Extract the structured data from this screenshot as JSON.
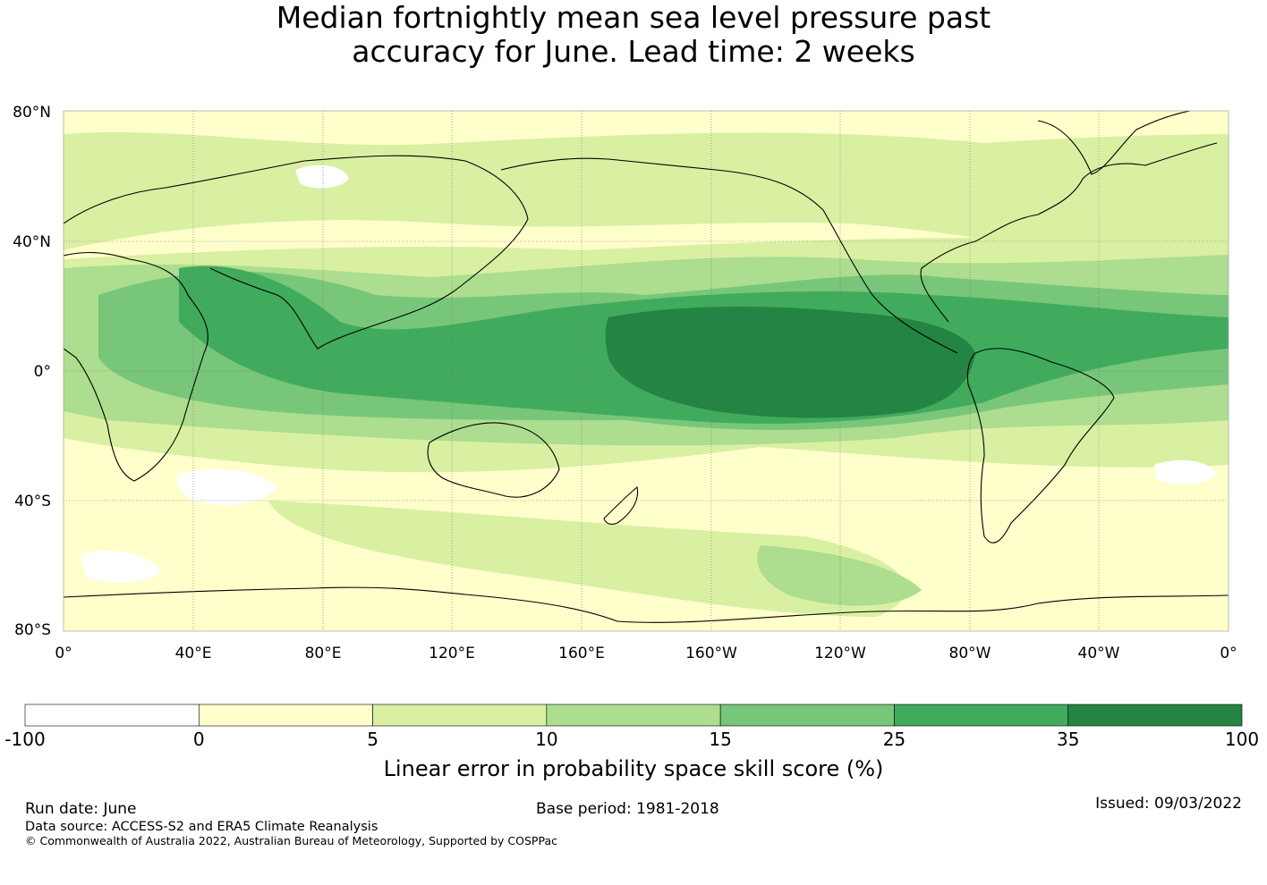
{
  "title": {
    "line1": "Median fortnightly mean sea level pressure past",
    "line2": "accuracy for June. Lead time: 2 weeks"
  },
  "map": {
    "lat_labels": [
      "80°N",
      "40°N",
      "0°",
      "40°S",
      "80°S"
    ],
    "lon_labels": [
      "0°",
      "40°E",
      "80°E",
      "120°E",
      "160°E",
      "160°W",
      "120°W",
      "80°W",
      "40°W",
      "0°"
    ]
  },
  "colorbar": {
    "title": "Linear error in probability space skill score (%)",
    "ticks": [
      "-100",
      "0",
      "5",
      "10",
      "15",
      "25",
      "35",
      "100"
    ],
    "colors": [
      "#ffffff",
      "#ffffcc",
      "#d9f0a3",
      "#addd8e",
      "#78c679",
      "#41ab5d",
      "#238443"
    ]
  },
  "footer": {
    "run_date": "Run date: June",
    "base_period": "Base period: 1981-2018",
    "issued": "Issued: 09/03/2022",
    "data_source": "Data source: ACCESS-S2 and ERA5 Climate Reanalysis",
    "copyright": "© Commonwealth of Australia 2022, Australian Bureau of Meteorology, Supported by COSPPac"
  }
}
